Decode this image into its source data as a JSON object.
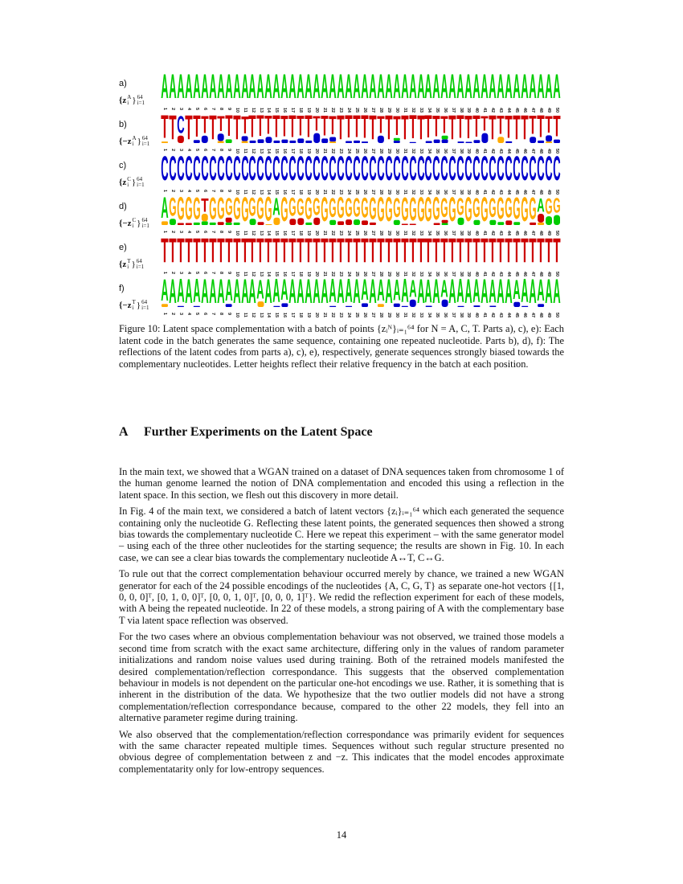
{
  "figure": {
    "colors": {
      "A": "#00cc00",
      "C": "#0000cc",
      "G": "#ffaa00",
      "T": "#cc0000"
    },
    "positions": 50,
    "rows": [
      {
        "label": "a)",
        "math": {
          "base": "{z",
          "sub": "i",
          "sup": "A",
          "close": "}",
          "lim_sup": "64",
          "lim_sub": "i=1"
        },
        "consensus": "AAAAAAAAAAAAAAAAAAAAAAAAAAAAAAAAAAAAAAAAAAAAAAAAAA",
        "minor": {}
      },
      {
        "label": "b)",
        "math": {
          "base": "{−z",
          "sub": "i",
          "sup": "A",
          "close": "}",
          "lim_sup": "64",
          "lim_sub": "i=1"
        },
        "consensus": "TTCTTTTTTTTTTTTTTTTTTTTTTTTTTTTTTTTTTTTTTTTTTTTTTT",
        "minor": {
          "1": [
            [
              "G",
              0.06
            ]
          ],
          "3": [
            [
              "T",
              0.3
            ]
          ],
          "5": [
            [
              "C",
              0.12
            ]
          ],
          "6": [
            [
              "C",
              0.3
            ]
          ],
          "8": [
            [
              "C",
              0.3
            ],
            [
              "G",
              0.08
            ]
          ],
          "9": [
            [
              "A",
              0.15
            ]
          ],
          "11": [
            [
              "C",
              0.2
            ],
            [
              "G",
              0.08
            ]
          ],
          "12": [
            [
              "C",
              0.1
            ]
          ],
          "13": [
            [
              "C",
              0.15
            ]
          ],
          "14": [
            [
              "C",
              0.25
            ]
          ],
          "15": [
            [
              "C",
              0.1
            ]
          ],
          "16": [
            [
              "C",
              0.14
            ]
          ],
          "17": [
            [
              "C",
              0.1
            ]
          ],
          "18": [
            [
              "C",
              0.18
            ]
          ],
          "19": [
            [
              "C",
              0.1
            ]
          ],
          "20": [
            [
              "C",
              0.4
            ]
          ],
          "21": [
            [
              "C",
              0.18
            ]
          ],
          "22": [
            [
              "C",
              0.18
            ],
            [
              "G",
              0.06
            ]
          ],
          "24": [
            [
              "C",
              0.08
            ]
          ],
          "25": [
            [
              "C",
              0.1
            ]
          ],
          "26": [
            [
              "C",
              0.06
            ]
          ],
          "28": [
            [
              "C",
              0.3
            ]
          ],
          "30": [
            [
              "C",
              0.1
            ],
            [
              "A",
              0.1
            ]
          ],
          "32": [
            [
              "C",
              0.04
            ]
          ],
          "34": [
            [
              "C",
              0.08
            ]
          ],
          "35": [
            [
              "C",
              0.14
            ]
          ],
          "36": [
            [
              "C",
              0.15
            ],
            [
              "A",
              0.15
            ]
          ],
          "38": [
            [
              "C",
              0.06
            ]
          ],
          "39": [
            [
              "C",
              0.05
            ]
          ],
          "40": [
            [
              "C",
              0.12
            ]
          ],
          "41": [
            [
              "C",
              0.4
            ]
          ],
          "43": [
            [
              "G",
              0.25
            ]
          ],
          "44": [
            [
              "C",
              0.07
            ]
          ],
          "47": [
            [
              "C",
              0.25
            ]
          ],
          "48": [
            [
              "C",
              0.1
            ]
          ],
          "49": [
            [
              "C",
              0.25
            ],
            [
              "G",
              0.06
            ]
          ],
          "50": [
            [
              "C",
              0.14
            ]
          ]
        }
      },
      {
        "label": "c)",
        "math": {
          "base": "{z",
          "sub": "i",
          "sup": "C",
          "close": "}",
          "lim_sup": "64",
          "lim_sub": "i=1"
        },
        "consensus": "CCCCCCCCCCCCCCCCCCCCCCCCCCCCCCCCCCCCCCCCCCCCCCCCCC",
        "minor": {}
      },
      {
        "label": "d)",
        "math": {
          "base": "{−z",
          "sub": "i",
          "sup": "C",
          "close": "}",
          "lim_sup": "64",
          "lim_sub": "i=1"
        },
        "consensus": "AGGGGTGGGGGGGGAGGGGGGGGGGGGGGGGGGGGGGGGGGGGGGGGAGG",
        "minor": {
          "1": [
            [
              "G",
              0.15
            ]
          ],
          "2": [
            [
              "A",
              0.25
            ]
          ],
          "3": [
            [
              "T",
              0.08
            ]
          ],
          "4": [
            [
              "T",
              0.08
            ]
          ],
          "5": [
            [
              "A",
              0.1
            ]
          ],
          "6": [
            [
              "G",
              0.3
            ],
            [
              "A",
              0.15
            ]
          ],
          "7": [
            [
              "A",
              0.1
            ]
          ],
          "8": [
            [
              "T",
              0.12
            ]
          ],
          "9": [
            [
              "T",
              0.2
            ],
            [
              "A",
              0.1
            ]
          ],
          "10": [
            [
              "A",
              0.1
            ]
          ],
          "12": [
            [
              "A",
              0.25
            ]
          ],
          "13": [
            [
              "T",
              0.12
            ]
          ],
          "14": [
            [
              "G",
              0.02
            ]
          ],
          "15": [
            [
              "G",
              0.3
            ]
          ],
          "17": [
            [
              "T",
              0.25
            ]
          ],
          "18": [
            [
              "T",
              0.28
            ]
          ],
          "19": [
            [
              "A",
              0.1
            ]
          ],
          "20": [
            [
              "T",
              0.3
            ]
          ],
          "22": [
            [
              "A",
              0.2
            ]
          ],
          "23": [
            [
              "T",
              0.15
            ]
          ],
          "24": [
            [
              "T",
              0.22
            ]
          ],
          "25": [
            [
              "A",
              0.22
            ]
          ],
          "26": [
            [
              "T",
              0.18
            ]
          ],
          "27": [
            [
              "T",
              0.1
            ]
          ],
          "30": [
            [
              "A",
              0.2
            ]
          ],
          "31": [
            [
              "T",
              0.05
            ]
          ],
          "32": [
            [
              "T",
              0.05
            ]
          ],
          "35": [
            [
              "T",
              0.08
            ]
          ],
          "36": [
            [
              "T",
              0.12
            ],
            [
              "A",
              0.08
            ]
          ],
          "38": [
            [
              "A",
              0.3
            ]
          ],
          "40": [
            [
              "A",
              0.2
            ]
          ],
          "42": [
            [
              "A",
              0.2
            ]
          ],
          "43": [
            [
              "A",
              0.12
            ]
          ],
          "44": [
            [
              "T",
              0.18
            ]
          ],
          "45": [
            [
              "A",
              0.12
            ]
          ],
          "47": [
            [
              "T",
              0.1
            ]
          ],
          "48": [
            [
              "T",
              0.35
            ],
            [
              "G",
              0.1
            ]
          ],
          "49": [
            [
              "A",
              0.35
            ]
          ],
          "50": [
            [
              "A",
              0.4
            ]
          ]
        }
      },
      {
        "label": "e)",
        "math": {
          "base": "{z",
          "sub": "i",
          "sup": "T",
          "close": "}",
          "lim_sup": "64",
          "lim_sub": "i=1"
        },
        "consensus": "TTTTTTTTTTTTTTTTTTTTTTTTTTTTTTTTTTTTTTTTTTTTTTTTTT",
        "minor": {}
      },
      {
        "label": "f)",
        "math": {
          "base": "{−z",
          "sub": "i",
          "sup": "T",
          "close": "}",
          "lim_sup": "64",
          "lim_sub": "i=1"
        },
        "consensus": "AAAAAAAAAAAAAAAAAAAAAAAAAAAAAAAAAAAAAAAAAAAAAAAAAA",
        "minor": {
          "1": [
            [
              "G",
              0.12
            ]
          ],
          "3": [
            [
              "C",
              0.04
            ]
          ],
          "5": [
            [
              "C",
              0.04
            ]
          ],
          "9": [
            [
              "C",
              0.12
            ]
          ],
          "13": [
            [
              "G",
              0.22
            ]
          ],
          "15": [
            [
              "C",
              0.04
            ]
          ],
          "16": [
            [
              "C",
              0.15
            ]
          ],
          "22": [
            [
              "C",
              0.04
            ]
          ],
          "24": [
            [
              "C",
              0.04
            ]
          ],
          "26": [
            [
              "C",
              0.15
            ]
          ],
          "28": [
            [
              "G",
              0.12
            ]
          ],
          "30": [
            [
              "C",
              0.14
            ]
          ],
          "31": [
            [
              "C",
              0.04
            ]
          ],
          "32": [
            [
              "C",
              0.3
            ]
          ],
          "34": [
            [
              "C",
              0.05
            ]
          ],
          "36": [
            [
              "C",
              0.3
            ]
          ],
          "38": [
            [
              "C",
              0.04
            ]
          ],
          "40": [
            [
              "C",
              0.06
            ]
          ],
          "42": [
            [
              "C",
              0.05
            ]
          ],
          "45": [
            [
              "C",
              0.2
            ]
          ],
          "46": [
            [
              "C",
              0.04
            ]
          ],
          "48": [
            [
              "C",
              0.12
            ]
          ]
        }
      }
    ],
    "caption": "Figure 10: Latent space complementation with a batch of points {zᵢᴺ}ᵢ₌₁⁶⁴ for N = A, C, T. Parts a), c), e): Each latent code in the batch generates the same sequence, containing one repeated nucleotide. Parts b), d), f): The reflections of the latent codes from parts a), c), e), respectively, generate sequences strongly biased towards the complementary nucleotides. Letter heights reflect their relative frequency in the batch at each position."
  },
  "section": {
    "number": "A",
    "title": "Further Experiments on the Latent Space"
  },
  "paragraphs": [
    "In the main text, we showed that a WGAN trained on a dataset of DNA sequences taken from chromosome 1 of the human genome learned the notion of DNA complementation and encoded this using a reflection in the latent space. In this section, we flesh out this discovery in more detail.",
    "In Fig. 4 of the main text, we considered a batch of latent vectors {zᵢ}ᵢ₌₁⁶⁴ which each generated the sequence containing only the nucleotide G. Reflecting these latent points, the generated sequences then showed a strong bias towards the complementary nucleotide C. Here we repeat this experiment – with the same generator model – using each of the three other nucleotides for the starting sequence; the results are shown in Fig. 10. In each case, we can see a clear bias towards the complementary nucleotide A↔T, C↔G.",
    "To rule out that the correct complementation behaviour occurred merely by chance, we trained a new WGAN generator for each of the 24 possible encodings of the nucleotides {A, C, G, T} as separate one-hot vectors {[1, 0, 0, 0]ᵀ, [0, 1, 0, 0]ᵀ, [0, 0, 1, 0]ᵀ, [0, 0, 0, 1]ᵀ}. We redid the reflection experiment for each of these models, with A being the repeated nucleotide. In 22 of these models, a strong pairing of A with the complementary base T via latent space reflection was observed.",
    "For the two cases where an obvious complementation behaviour was not observed, we trained those models a second time from scratch with the exact same architecture, differing only in the values of random parameter initializations and random noise values used during training. Both of the retrained models manifested the desired complementation/reflection correspondance. This suggests that the observed complementation behaviour in models is not dependent on the particular one-hot encodings we use. Rather, it is something that is inherent in the distribution of the data. We hypothesize that the two outlier models did not have a strong complementation/reflection correspondance because, compared to the other 22 models, they fell into an alternative parameter regime during training.",
    "We also observed that the complementation/reflection correspondance was primarily evident for sequences with the same character repeated multiple times. Sequences without such regular structure presented no obvious degree of complementation between z and −z. This indicates that the model encodes approximate complementatarity only for low-entropy sequences."
  ],
  "page_number": "14"
}
